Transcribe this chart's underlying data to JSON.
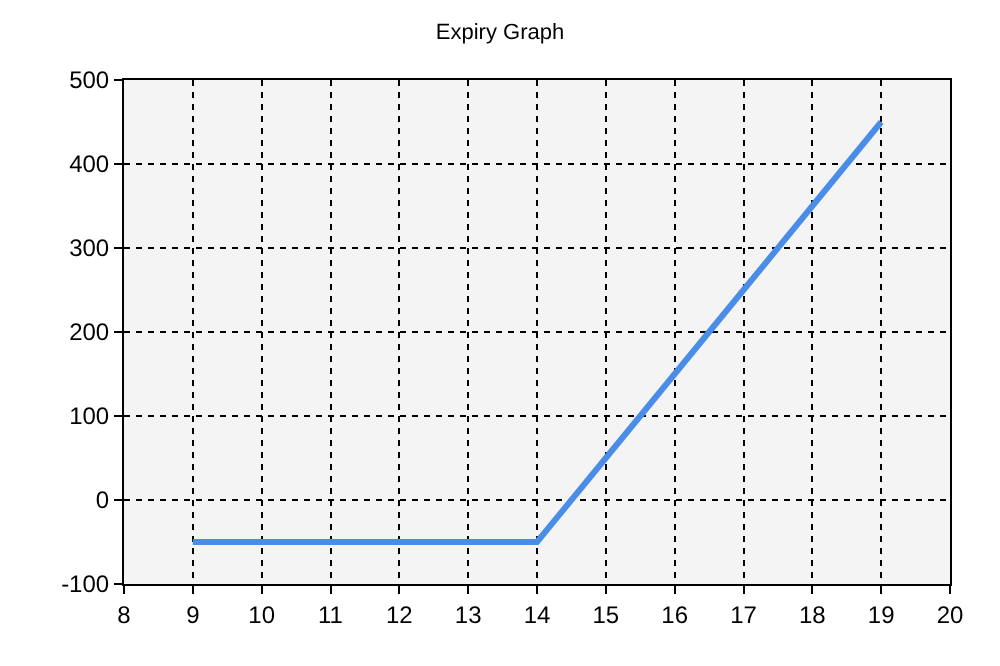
{
  "chart_data": {
    "type": "line",
    "title": "Expiry Graph",
    "x": [
      9,
      10,
      11,
      12,
      13,
      14,
      15,
      16,
      17,
      18,
      19
    ],
    "series": [
      {
        "color": "#4a8de8",
        "values": [
          -50,
          -50,
          -50,
          -50,
          -50,
          -50,
          50,
          150,
          250,
          350,
          450
        ]
      }
    ],
    "xlim": [
      8,
      20
    ],
    "xticks": [
      8,
      9,
      10,
      11,
      12,
      13,
      14,
      15,
      16,
      17,
      18,
      19,
      20
    ],
    "ylim": [
      -100,
      500
    ],
    "yticks": [
      -100,
      0,
      100,
      200,
      300,
      400,
      500
    ],
    "grid": true,
    "line_style": "solid",
    "marker": "none"
  }
}
